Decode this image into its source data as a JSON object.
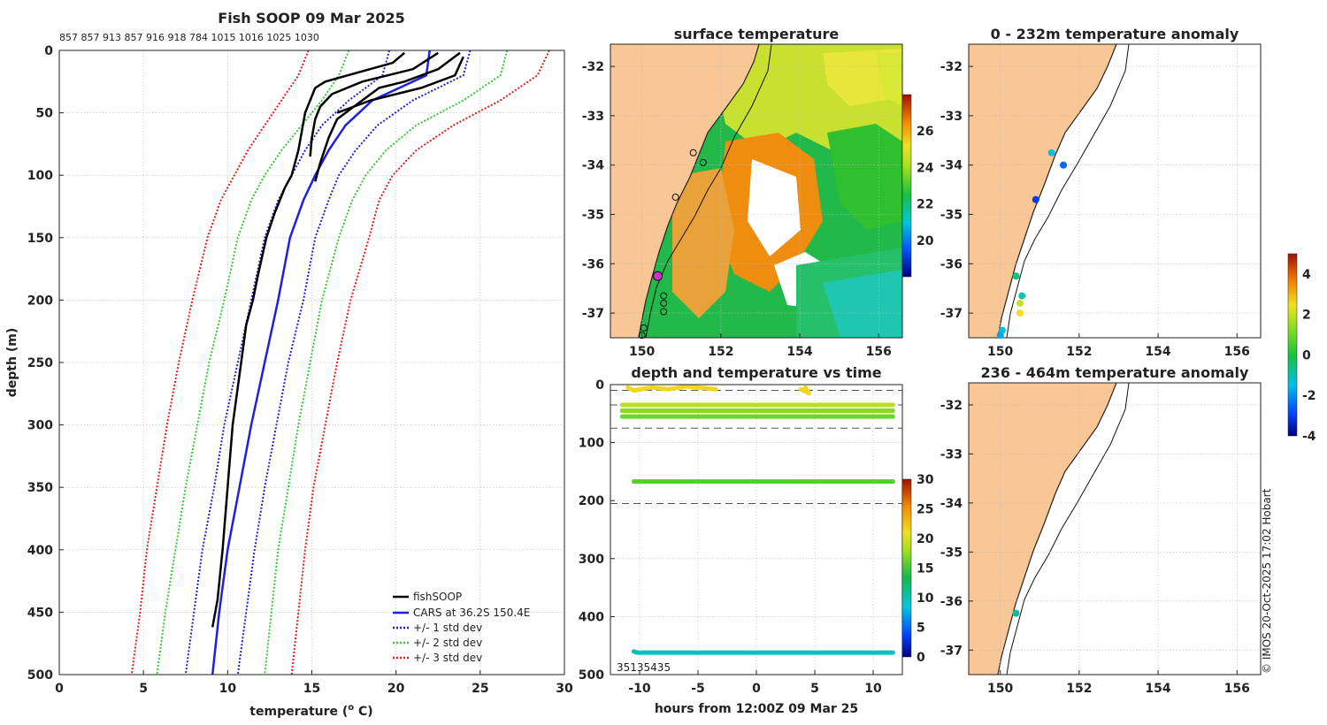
{
  "colors": {
    "land": "#f9c796",
    "cars": "#1f1fe0",
    "fish": "#000000",
    "std1": "#2020d0",
    "std2": "#30cc30",
    "std3": "#dd2020",
    "highlight": "#d030d0"
  },
  "credit": "© IMOS 20-Oct-2025 17:02 Hobart",
  "chart_data": [
    {
      "type": "line",
      "title": "Fish SOOP 09 Mar 2025",
      "profile_ids": "857 857 913 857 916 918 784 1015 1016 1025 1030",
      "xlabel": "temperature (",
      "xlabel_sup": "o",
      "xlabel_end": " C)",
      "ylabel": "depth (m)",
      "xlim": [
        0,
        30
      ],
      "ylim": [
        0,
        500
      ],
      "y_inverted": true,
      "xticks": [
        "0",
        "5",
        "10",
        "15",
        "20",
        "25",
        "30"
      ],
      "yticks": [
        "0",
        "50",
        "100",
        "150",
        "200",
        "250",
        "300",
        "350",
        "400",
        "450",
        "500"
      ],
      "legend": {
        "position": "bottom-right",
        "entries": [
          "fishSOOP",
          "CARS at 36.2S 150.4E",
          "+/- 1 std dev",
          "+/- 2 std dev",
          "+/- 3 std dev"
        ]
      },
      "series": [
        {
          "name": "CARS at 36.2S 150.4E",
          "style": "solid",
          "color": "#1f1fe0",
          "depth": [
            0,
            20,
            40,
            60,
            80,
            100,
            120,
            150,
            200,
            250,
            300,
            350,
            400,
            450,
            500
          ],
          "temp": [
            22.0,
            21.8,
            18.6,
            17.0,
            16.0,
            15.2,
            14.5,
            13.7,
            13.0,
            12.2,
            11.4,
            10.7,
            10.0,
            9.5,
            9.1
          ]
        },
        {
          "name": "CARS -1 std",
          "style": "dotted",
          "color": "#2020d0",
          "depth": [
            0,
            20,
            40,
            60,
            80,
            100,
            120,
            150,
            200,
            250,
            300,
            350,
            400,
            450,
            500
          ],
          "temp": [
            19.6,
            19.2,
            17.2,
            15.6,
            14.6,
            13.8,
            13.0,
            12.2,
            11.4,
            10.6,
            9.8,
            9.2,
            8.5,
            8.0,
            7.5
          ]
        },
        {
          "name": "CARS +1 std",
          "style": "dotted",
          "color": "#2020d0",
          "depth": [
            0,
            20,
            40,
            60,
            80,
            100,
            120,
            150,
            200,
            250,
            300,
            350,
            400,
            450,
            500
          ],
          "temp": [
            24.4,
            24.0,
            21.0,
            18.9,
            17.6,
            16.6,
            16.0,
            15.2,
            14.5,
            13.6,
            12.9,
            12.2,
            11.6,
            11.1,
            10.6
          ]
        },
        {
          "name": "CARS -2 std",
          "style": "dotted",
          "color": "#30cc30",
          "depth": [
            0,
            20,
            40,
            60,
            80,
            100,
            120,
            150,
            200,
            250,
            300,
            350,
            400,
            450,
            500
          ],
          "temp": [
            17.2,
            16.6,
            15.6,
            14.4,
            13.2,
            12.2,
            11.4,
            10.6,
            9.8,
            8.9,
            8.2,
            7.5,
            6.9,
            6.3,
            5.8
          ]
        },
        {
          "name": "CARS +2 std",
          "style": "dotted",
          "color": "#30cc30",
          "depth": [
            0,
            20,
            40,
            60,
            80,
            100,
            120,
            150,
            200,
            250,
            300,
            350,
            400,
            450,
            500
          ],
          "temp": [
            26.6,
            26.2,
            24.0,
            21.2,
            19.4,
            18.2,
            17.4,
            16.6,
            15.6,
            14.9,
            14.2,
            13.6,
            13.0,
            12.6,
            12.2
          ]
        },
        {
          "name": "CARS -3 std",
          "style": "dotted",
          "color": "#dd2020",
          "depth": [
            0,
            20,
            40,
            60,
            80,
            100,
            120,
            150,
            200,
            250,
            300,
            350,
            400,
            450,
            500
          ],
          "temp": [
            14.8,
            14.2,
            13.2,
            12.2,
            11.2,
            10.4,
            9.6,
            8.8,
            7.9,
            7.1,
            6.4,
            5.8,
            5.2,
            4.8,
            4.3
          ]
        },
        {
          "name": "CARS +3 std",
          "style": "dotted",
          "color": "#dd2020",
          "depth": [
            0,
            20,
            40,
            60,
            80,
            100,
            120,
            150,
            200,
            250,
            300,
            350,
            400,
            450,
            500
          ],
          "temp": [
            29.1,
            28.4,
            26.2,
            23.4,
            21.2,
            19.8,
            19.0,
            18.4,
            17.3,
            16.5,
            15.8,
            15.1,
            14.6,
            14.2,
            13.8
          ]
        },
        {
          "name": "fishSOOP",
          "style": "solid",
          "color": "#000000",
          "depth": [
            2,
            10,
            25,
            30,
            40,
            50,
            65,
            80,
            90,
            100,
            110,
            130,
            150,
            180,
            200,
            220,
            250,
            300,
            350,
            400,
            440,
            462
          ],
          "temp": [
            20.5,
            19.8,
            15.8,
            15.2,
            14.9,
            14.6,
            14.4,
            14.2,
            14.0,
            13.8,
            13.4,
            12.8,
            12.3,
            11.8,
            11.5,
            11.1,
            10.8,
            10.3,
            10.0,
            9.7,
            9.4,
            9.1
          ]
        },
        {
          "name": "fishSOOP",
          "style": "solid",
          "color": "#000000",
          "depth": [
            2,
            15,
            25,
            30,
            45,
            55,
            70,
            90,
            105
          ],
          "temp": [
            23.8,
            22.5,
            20.5,
            19.0,
            17.5,
            16.5,
            16.0,
            15.5,
            15.2
          ]
        },
        {
          "name": "fishSOOP",
          "style": "solid",
          "color": "#000000",
          "depth": [
            2,
            15,
            25,
            35,
            45,
            55,
            70,
            85
          ],
          "temp": [
            22.5,
            21.0,
            18.0,
            16.2,
            15.5,
            15.2,
            15.0,
            14.9
          ]
        },
        {
          "name": "fishSOOP",
          "style": "solid",
          "color": "#000000",
          "depth": [
            5,
            20,
            30,
            40,
            50
          ],
          "temp": [
            24.0,
            23.5,
            21.5,
            18.5,
            16.5
          ]
        }
      ]
    },
    {
      "type": "heatmap",
      "title": "surface temperature",
      "xticks": [
        "150",
        "152",
        "154",
        "156"
      ],
      "yticks": [
        "-32",
        "-33",
        "-34",
        "-35",
        "-36",
        "-37"
      ],
      "colorbar": {
        "ticks": [
          "20",
          "22",
          "24",
          "26"
        ],
        "range": [
          18,
          28
        ]
      },
      "stations": [
        {
          "lon": 151.3,
          "lat": -33.75
        },
        {
          "lon": 151.55,
          "lat": -33.95
        },
        {
          "lon": 150.85,
          "lat": -34.65
        },
        {
          "lon": 150.4,
          "lat": -36.25,
          "highlight": true
        },
        {
          "lon": 150.55,
          "lat": -36.65
        },
        {
          "lon": 150.55,
          "lat": -36.8
        },
        {
          "lon": 150.55,
          "lat": -36.97
        },
        {
          "lon": 150.05,
          "lat": -37.3
        },
        {
          "lon": 150.0,
          "lat": -37.45
        }
      ]
    },
    {
      "type": "scatter",
      "title": "0 - 232m temperature anomaly",
      "xticks": [
        "150",
        "152",
        "154",
        "156"
      ],
      "yticks": [
        "-32",
        "-33",
        "-34",
        "-35",
        "-36",
        "-37"
      ],
      "points": [
        {
          "lon": 151.3,
          "lat": -33.75,
          "anom": -1.5
        },
        {
          "lon": 151.6,
          "lat": -34.0,
          "anom": -2.5
        },
        {
          "lon": 150.9,
          "lat": -34.7,
          "anom": -3.0
        },
        {
          "lon": 150.4,
          "lat": -36.25,
          "anom": -0.5
        },
        {
          "lon": 150.55,
          "lat": -36.65,
          "anom": -1.0
        },
        {
          "lon": 150.5,
          "lat": -36.8,
          "anom": 2.0
        },
        {
          "lon": 150.5,
          "lat": -37.0,
          "anom": 2.5
        },
        {
          "lon": 150.05,
          "lat": -37.35,
          "anom": -1.5
        },
        {
          "lon": 150.0,
          "lat": -37.45,
          "anom": -1.8
        }
      ]
    },
    {
      "type": "scatter",
      "title": "depth and temperature vs time",
      "xlabel": "hours from 12:00Z 09 Mar 25",
      "xticks": [
        "-10",
        "-5",
        "0",
        "5",
        "10"
      ],
      "yticks": [
        "0",
        "100",
        "200",
        "300",
        "400",
        "500"
      ],
      "xlim": [
        -12.5,
        12.5
      ],
      "ylim": [
        0,
        500
      ],
      "y_inverted": true,
      "dashed_depths": [
        10,
        35,
        75,
        205
      ],
      "colorbar": {
        "ticks": [
          "0",
          "5",
          "10",
          "15",
          "20",
          "25",
          "30"
        ],
        "range": [
          0,
          30
        ]
      },
      "bottom_labels": "35135435",
      "tracks": [
        {
          "hours": [
            -10.5,
            -10.2,
            11.7
          ],
          "depth": [
            460,
            462,
            462
          ],
          "temp": 9.5
        },
        {
          "hours": [
            -10.5,
            11.7
          ],
          "depth": [
            167,
            167
          ],
          "temp": 15.5
        },
        {
          "hours": [
            -11.5,
            11.7
          ],
          "depth": [
            55,
            55
          ],
          "temp": 16.5
        },
        {
          "hours": [
            -11.5,
            11.7
          ],
          "depth": [
            45,
            45
          ],
          "temp": 17.5
        },
        {
          "hours": [
            -11.5,
            11.7
          ],
          "depth": [
            35,
            35
          ],
          "temp": 19.5
        },
        {
          "hours": [
            -11.0,
            -10.5,
            -9.0,
            -7.5,
            -6.0,
            -3.5
          ],
          "depth": [
            5,
            10,
            5,
            8,
            3,
            8
          ],
          "temp": 22.0
        },
        {
          "hours": [
            4.2,
            4.5,
            3.8
          ],
          "depth": [
            5,
            15,
            8
          ],
          "temp": 22.0
        }
      ]
    },
    {
      "type": "scatter",
      "title": "236 - 464m temperature anomaly",
      "xticks": [
        "150",
        "152",
        "154",
        "156"
      ],
      "yticks": [
        "-32",
        "-33",
        "-34",
        "-35",
        "-36",
        "-37"
      ],
      "points": [
        {
          "lon": 150.4,
          "lat": -36.25,
          "anom": -0.8
        }
      ],
      "colorbar": {
        "ticks": [
          "4",
          "2",
          "0",
          "-2",
          "-4"
        ],
        "range": [
          -4,
          5
        ]
      }
    }
  ]
}
